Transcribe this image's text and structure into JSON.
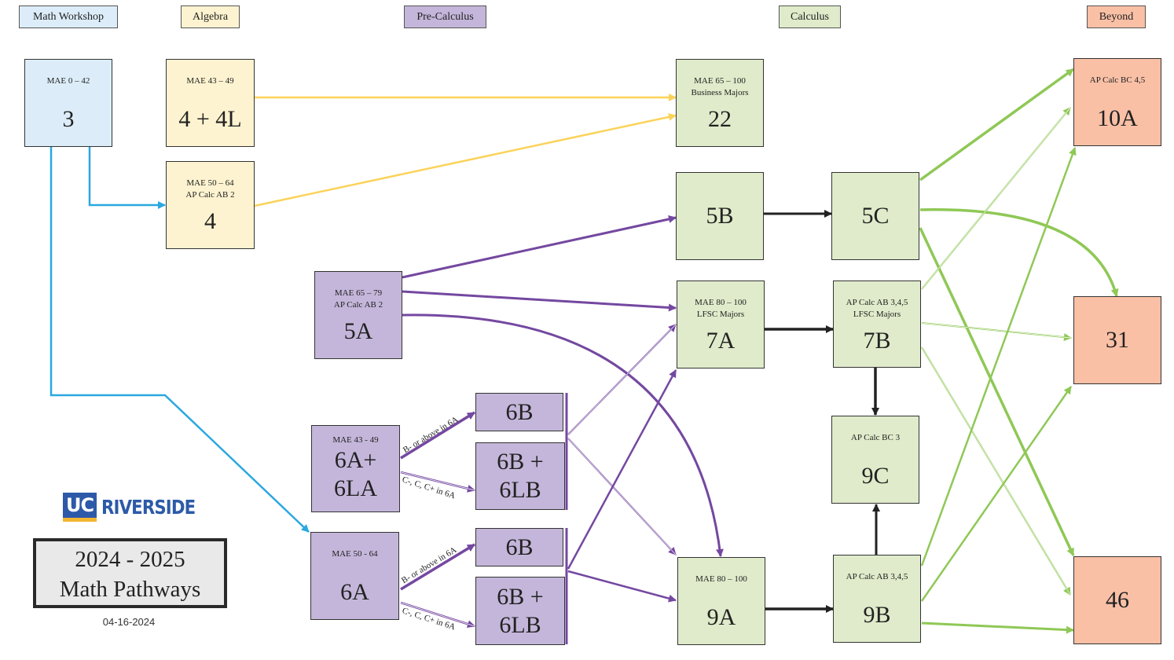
{
  "headers": [
    {
      "label": "Math Workshop",
      "color": "blue"
    },
    {
      "label": "Algebra",
      "color": "yellow"
    },
    {
      "label": "Pre-Calculus",
      "color": "purple"
    },
    {
      "label": "Calculus",
      "color": "green"
    },
    {
      "label": "Beyond",
      "color": "salmon"
    }
  ],
  "nodes": {
    "n3": {
      "sub": "MAE 0 – 42",
      "main": "3",
      "color": "blue"
    },
    "n4_4L": {
      "sub": "MAE 43 – 49",
      "main": "4 + 4L",
      "color": "yellow"
    },
    "n4": {
      "sub": "MAE 50 – 64\nAP Calc AB 2",
      "main": "4",
      "color": "yellow"
    },
    "n5A": {
      "sub": "MAE 65 – 79\nAP Calc AB 2",
      "main": "5A",
      "color": "purple"
    },
    "n6Aplus": {
      "sub": "MAE 43 - 49",
      "main": "6A+\n6LA",
      "color": "purple"
    },
    "n6A": {
      "sub": "MAE 50 - 64",
      "main": "6A",
      "color": "purple"
    },
    "n6B_1": {
      "sub": "",
      "main": "6B",
      "color": "purple"
    },
    "n6B6LB_1": {
      "sub": "",
      "main": "6B +\n6LB",
      "color": "purple"
    },
    "n6B_2": {
      "sub": "",
      "main": "6B",
      "color": "purple"
    },
    "n6B6LB_2": {
      "sub": "",
      "main": "6B +\n6LB",
      "color": "purple"
    },
    "n22": {
      "sub": "MAE 65 – 100\nBusiness Majors",
      "main": "22",
      "color": "green"
    },
    "n5B": {
      "sub": "",
      "main": "5B",
      "color": "green"
    },
    "n5C": {
      "sub": "",
      "main": "5C",
      "color": "green"
    },
    "n7A": {
      "sub": "MAE 80 – 100\nLFSC Majors",
      "main": "7A",
      "color": "green"
    },
    "n7B": {
      "sub": "AP Calc AB 3,4,5\nLFSC Majors",
      "main": "7B",
      "color": "green"
    },
    "n9C": {
      "sub": "AP Calc BC 3",
      "main": "9C",
      "color": "green"
    },
    "n9A": {
      "sub": "MAE  80 – 100",
      "main": "9A",
      "color": "green"
    },
    "n9B": {
      "sub": "AP Calc AB 3,4,5",
      "main": "9B",
      "color": "green"
    },
    "n10A": {
      "sub": "AP Calc BC 4,5",
      "main": "10A",
      "color": "salmon"
    },
    "n31": {
      "sub": "",
      "main": "31",
      "color": "salmon"
    },
    "n46": {
      "sub": "",
      "main": "46",
      "color": "salmon"
    }
  },
  "edge_labels": {
    "pass_6Aplus": "B- or above in 6A",
    "fail_6Aplus": "C-, C, C+ in 6A",
    "pass_6A": "B- or above in 6A",
    "fail_6A": "C-, C, C+ in 6A"
  },
  "colors": {
    "blue": "#2aa8e0",
    "yellow": "#fbd35a",
    "purple": "#7448a0",
    "black": "#222222",
    "green": "#8fc856"
  },
  "logo": {
    "uc": "UC",
    "riverside": "RIVERSIDE"
  },
  "title": {
    "years": "2024 - 2025",
    "name": "Math Pathways"
  },
  "date": "04-16-2024"
}
